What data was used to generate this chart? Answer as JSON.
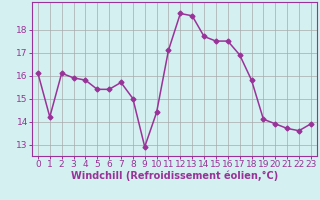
{
  "x": [
    0,
    1,
    2,
    3,
    4,
    5,
    6,
    7,
    8,
    9,
    10,
    11,
    12,
    13,
    14,
    15,
    16,
    17,
    18,
    19,
    20,
    21,
    22,
    23
  ],
  "y": [
    16.1,
    14.2,
    16.1,
    15.9,
    15.8,
    15.4,
    15.4,
    15.7,
    15.0,
    12.9,
    14.4,
    17.1,
    18.7,
    18.6,
    17.7,
    17.5,
    17.5,
    16.9,
    15.8,
    14.1,
    13.9,
    13.7,
    13.6,
    13.9
  ],
  "line_color": "#993399",
  "marker": "D",
  "marker_size": 2.5,
  "bg_color": "#d4f0f0",
  "grid_color": "#aaaaaa",
  "xlabel": "Windchill (Refroidissement éolien,°C)",
  "xlim": [
    -0.5,
    23.5
  ],
  "ylim": [
    12.5,
    19.2
  ],
  "yticks": [
    13,
    14,
    15,
    16,
    17,
    18
  ],
  "xticks": [
    0,
    1,
    2,
    3,
    4,
    5,
    6,
    7,
    8,
    9,
    10,
    11,
    12,
    13,
    14,
    15,
    16,
    17,
    18,
    19,
    20,
    21,
    22,
    23
  ],
  "tick_fontsize": 6.5,
  "xlabel_fontsize": 7.0,
  "line_width": 1.1
}
